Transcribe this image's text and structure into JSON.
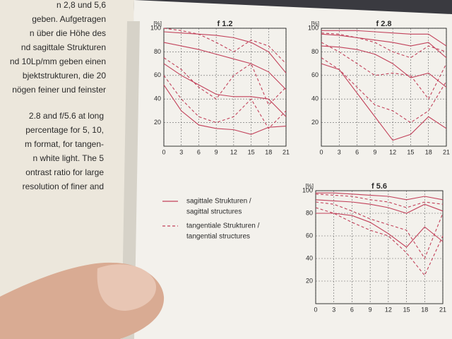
{
  "left_page": {
    "german_lines": [
      "n 2,8 und 5,6",
      "geben. Aufgetragen",
      "n über die Höhe des",
      "nd sagittale Strukturen",
      "nd 10Lp/mm geben einen",
      "bjektstrukturen, die 20",
      "nögen feiner und feinster"
    ],
    "english_lines": [
      "2.8 and f/5.6 at long",
      "percentage for 5, 10,",
      "m format, for tangen-",
      "n white light. The 5",
      "ontrast ratio for large",
      "resolution of finer and"
    ]
  },
  "legend": [
    {
      "style": "solid",
      "color": "#c2415a",
      "lines": [
        "sagittale Strukturen /",
        "sagittal structures"
      ]
    },
    {
      "style": "dashed",
      "color": "#c2415a",
      "lines": [
        "tangentiale Strukturen /",
        "tangential structures"
      ]
    }
  ],
  "chart_data": [
    {
      "type": "line",
      "title": "f 1.2",
      "ylabel": "[%]",
      "x": [
        0,
        3,
        6,
        9,
        12,
        15,
        18,
        21
      ],
      "xlim": [
        0,
        21
      ],
      "xticks": [
        0,
        3,
        6,
        9,
        12,
        15,
        18,
        21
      ],
      "ylim": [
        0,
        100
      ],
      "yticks": [
        20,
        40,
        60,
        80,
        100
      ],
      "grid": true,
      "series": [
        {
          "style": "solid",
          "color": "#c2415a",
          "values": [
            97,
            96,
            95,
            94,
            92,
            88,
            80,
            62
          ]
        },
        {
          "style": "solid",
          "color": "#c2415a",
          "values": [
            88,
            85,
            82,
            78,
            74,
            70,
            63,
            48
          ]
        },
        {
          "style": "solid",
          "color": "#c2415a",
          "values": [
            70,
            60,
            52,
            44,
            42,
            42,
            40,
            25
          ]
        },
        {
          "style": "solid",
          "color": "#c2415a",
          "values": [
            52,
            30,
            18,
            15,
            14,
            10,
            16,
            17
          ]
        },
        {
          "style": "dashed",
          "color": "#c2415a",
          "values": [
            100,
            98,
            95,
            88,
            80,
            90,
            85,
            70
          ]
        },
        {
          "style": "dashed",
          "color": "#c2415a",
          "values": [
            75,
            65,
            50,
            40,
            60,
            70,
            35,
            50
          ]
        },
        {
          "style": "dashed",
          "color": "#c2415a",
          "values": [
            60,
            40,
            25,
            20,
            25,
            40,
            15,
            30
          ]
        }
      ]
    },
    {
      "type": "line",
      "title": "f 2.8",
      "ylabel": "[%]",
      "x": [
        0,
        3,
        6,
        9,
        12,
        15,
        18,
        21
      ],
      "xlim": [
        0,
        21
      ],
      "xticks": [
        0,
        3,
        6,
        9,
        12,
        15,
        18,
        21
      ],
      "ylim": [
        0,
        100
      ],
      "yticks": [
        20,
        40,
        60,
        80,
        100
      ],
      "grid": true,
      "series": [
        {
          "style": "solid",
          "color": "#c2415a",
          "values": [
            98,
            98,
            98,
            97,
            96,
            95,
            95,
            85
          ]
        },
        {
          "style": "solid",
          "color": "#c2415a",
          "values": [
            95,
            94,
            92,
            90,
            88,
            85,
            88,
            75
          ]
        },
        {
          "style": "solid",
          "color": "#c2415a",
          "values": [
            85,
            84,
            82,
            78,
            70,
            58,
            62,
            50
          ]
        },
        {
          "style": "solid",
          "color": "#c2415a",
          "values": [
            70,
            65,
            45,
            25,
            5,
            10,
            25,
            15
          ]
        },
        {
          "style": "dashed",
          "color": "#c2415a",
          "values": [
            96,
            95,
            92,
            88,
            80,
            75,
            85,
            80
          ]
        },
        {
          "style": "dashed",
          "color": "#c2415a",
          "values": [
            88,
            80,
            70,
            60,
            62,
            60,
            40,
            70
          ]
        },
        {
          "style": "dashed",
          "color": "#c2415a",
          "values": [
            75,
            65,
            50,
            35,
            30,
            20,
            30,
            55
          ]
        }
      ]
    },
    {
      "type": "line",
      "title": "f 5.6",
      "ylabel": "[%]",
      "x": [
        0,
        3,
        6,
        9,
        12,
        15,
        18,
        21
      ],
      "xlim": [
        0,
        21
      ],
      "xticks": [
        0,
        3,
        6,
        9,
        12,
        15,
        18,
        21
      ],
      "ylim": [
        0,
        100
      ],
      "yticks": [
        20,
        40,
        60,
        80,
        100
      ],
      "grid": true,
      "series": [
        {
          "style": "solid",
          "color": "#c2415a",
          "values": [
            98,
            98,
            97,
            96,
            95,
            92,
            95,
            92
          ]
        },
        {
          "style": "solid",
          "color": "#c2415a",
          "values": [
            92,
            91,
            90,
            88,
            85,
            80,
            88,
            82
          ]
        },
        {
          "style": "solid",
          "color": "#c2415a",
          "values": [
            80,
            80,
            78,
            72,
            62,
            50,
            68,
            55
          ]
        },
        {
          "style": "dashed",
          "color": "#c2415a",
          "values": [
            97,
            96,
            95,
            92,
            90,
            85,
            90,
            88
          ]
        },
        {
          "style": "dashed",
          "color": "#c2415a",
          "values": [
            90,
            88,
            82,
            75,
            70,
            65,
            40,
            80
          ]
        },
        {
          "style": "dashed",
          "color": "#c2415a",
          "values": [
            85,
            80,
            72,
            65,
            60,
            45,
            25,
            60
          ]
        }
      ]
    }
  ]
}
